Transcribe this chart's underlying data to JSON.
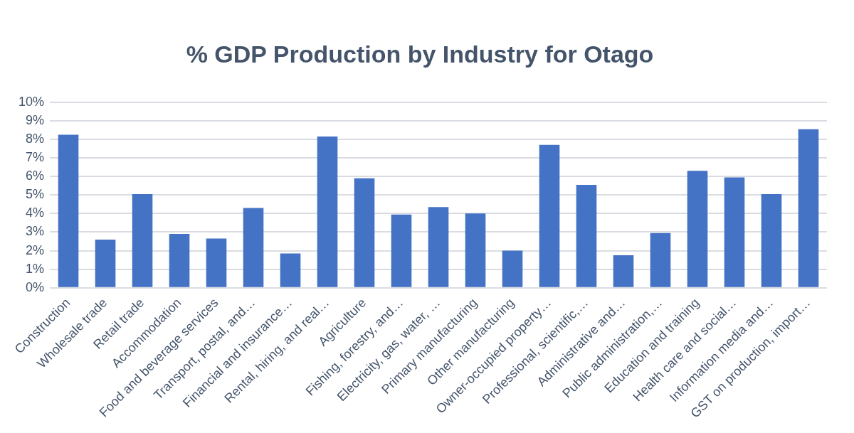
{
  "chart_data": {
    "type": "bar",
    "title": "% GDP Production by Industry for Otago",
    "categories": [
      "Construction",
      "Wholesale trade",
      "Retail trade",
      "Accommodation",
      "Food and beverage services",
      "Transport, postal, and…",
      "Financial and insurance…",
      "Rental, hiring, and real…",
      "Agriculture",
      "Fishing, forestry, and…",
      "Electricity, gas, water, …",
      "Primary manufacturing",
      "Other manufacturing",
      "Owner-occupied property…",
      "Professional, scientific,…",
      "Administrative and…",
      "Public administration,…",
      "Education and training",
      "Health care and social…",
      "Information media and…",
      "GST on production, import…"
    ],
    "values": [
      8.25,
      2.6,
      5.05,
      2.9,
      2.65,
      4.3,
      1.85,
      8.15,
      5.9,
      3.95,
      4.35,
      4.0,
      2.0,
      7.7,
      5.55,
      1.75,
      2.95,
      6.3,
      5.95,
      5.05,
      8.55
    ],
    "color": "#4472c4",
    "ylim": [
      0,
      10
    ],
    "yticks": [
      {
        "value": 0,
        "label": "0%"
      },
      {
        "value": 1,
        "label": "1%"
      },
      {
        "value": 2,
        "label": "2%"
      },
      {
        "value": 3,
        "label": "3%"
      },
      {
        "value": 4,
        "label": "4%"
      },
      {
        "value": 5,
        "label": "5%"
      },
      {
        "value": 6,
        "label": "6%"
      },
      {
        "value": 7,
        "label": "7%"
      },
      {
        "value": 8,
        "label": "8%"
      },
      {
        "value": 9,
        "label": "9%"
      },
      {
        "value": 10,
        "label": "10%"
      }
    ],
    "grid": "y",
    "legend": false
  }
}
